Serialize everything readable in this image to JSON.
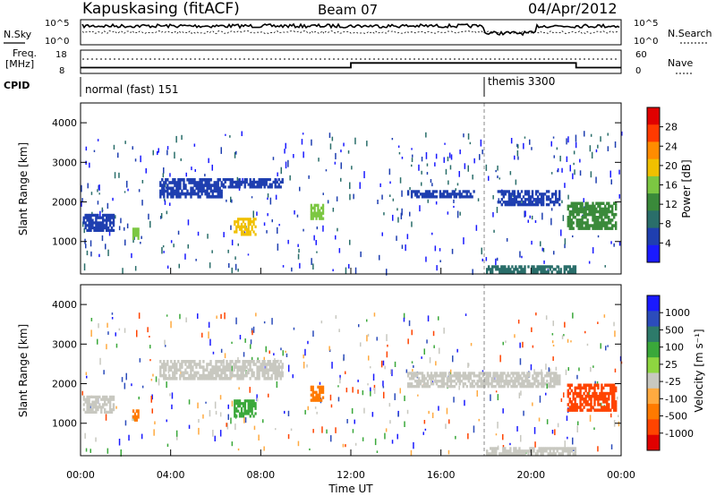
{
  "header": {
    "station": "Kapuskasing (fitACF)",
    "beam": "Beam 07",
    "date": "04/Apr/2012"
  },
  "left_labels": {
    "nsky": "N.Sky",
    "freq": "Freq.",
    "freq_unit": "[MHz]",
    "cpid": "CPID"
  },
  "right_labels": {
    "nsearch": "N.Search",
    "nave": "Nave"
  },
  "cpid_modes": [
    {
      "label": "normal (fast) 151",
      "start_hour": 0
    },
    {
      "label": "themis 3300",
      "start_hour": 18
    }
  ],
  "colors": {
    "power_scale": [
      "#1a1aff",
      "#1f3fb0",
      "#2a6e6a",
      "#3a8a3a",
      "#7cc742",
      "#f0c000",
      "#ff8c00",
      "#ff3a00",
      "#e00000"
    ],
    "velocity_scale": [
      "#1a1aff",
      "#2c4cbb",
      "#2d7a6a",
      "#3aa83a",
      "#8ed640",
      "#c8c8c0",
      "#ffaa40",
      "#ff7a00",
      "#ff4400",
      "#e00000"
    ]
  },
  "chart_data": [
    {
      "type": "line",
      "panel": "noise",
      "left_axis": {
        "label": "N.Sky",
        "ticks": [
          "10^5",
          "10^0"
        ]
      },
      "right_axis": {
        "label": "N.Search",
        "ticks": [
          "10^5",
          "10^0"
        ]
      }
    },
    {
      "type": "line",
      "panel": "frequency_nave",
      "left_axis": {
        "label": "Freq. [MHz]",
        "ticks": [
          "18",
          "8"
        ]
      },
      "right_axis": {
        "label": "Nave",
        "ticks": [
          "60",
          "0"
        ]
      },
      "frequency_steps": [
        {
          "x": 0,
          "y": 10.5
        },
        {
          "x": 12,
          "y": 12.5
        },
        {
          "x": 22,
          "y": 10.5
        }
      ]
    },
    {
      "type": "heatmap",
      "panel": "power",
      "xlabel": "",
      "ylabel": "Slant Range [km]",
      "ylim": [
        180,
        4500
      ],
      "yticks": [
        "1000",
        "2000",
        "3000",
        "4000"
      ],
      "colorbar": {
        "label": "Power [dB]",
        "ticks": [
          "4",
          "8",
          "12",
          "16",
          "20",
          "24",
          "28"
        ]
      },
      "regions": [
        {
          "x0": 0.1,
          "x1": 1.5,
          "y0": 1250,
          "y1": 1700,
          "value": 6
        },
        {
          "x0": 2.3,
          "x1": 2.6,
          "y0": 1050,
          "y1": 1350,
          "value": 16
        },
        {
          "x0": 3.5,
          "x1": 6.3,
          "y0": 2100,
          "y1": 2600,
          "value": 6
        },
        {
          "x0": 6.3,
          "x1": 9.0,
          "y0": 2350,
          "y1": 2600,
          "value": 6
        },
        {
          "x0": 6.8,
          "x1": 7.8,
          "y0": 1150,
          "y1": 1600,
          "value": 18
        },
        {
          "x0": 10.2,
          "x1": 10.8,
          "y0": 1550,
          "y1": 1950,
          "value": 14
        },
        {
          "x0": 14.5,
          "x1": 17.5,
          "y0": 2100,
          "y1": 2300,
          "value": 4
        },
        {
          "x0": 18.5,
          "x1": 21.3,
          "y0": 1900,
          "y1": 2300,
          "value": 6
        },
        {
          "x0": 21.6,
          "x1": 23.8,
          "y0": 1300,
          "y1": 2000,
          "value": 12
        },
        {
          "x0": 18.0,
          "x1": 22.0,
          "y0": 200,
          "y1": 400,
          "value": 10
        }
      ]
    },
    {
      "type": "heatmap",
      "panel": "velocity",
      "xlabel": "Time UT",
      "ylabel": "Slant Range [km]",
      "ylim": [
        180,
        4500
      ],
      "yticks": [
        "1000",
        "2000",
        "3000",
        "4000"
      ],
      "xticks": [
        "00:00",
        "04:00",
        "08:00",
        "12:00",
        "16:00",
        "20:00",
        "00:00"
      ],
      "xlim": [
        0,
        24
      ],
      "colorbar": {
        "label": "Velocity [m s^-1]",
        "ticks": [
          "1000",
          "500",
          "100",
          "25",
          "-25",
          "-100",
          "-500",
          "-1000"
        ]
      },
      "regions": [
        {
          "x0": 0.1,
          "x1": 1.5,
          "y0": 1250,
          "y1": 1700,
          "value": 0
        },
        {
          "x0": 2.3,
          "x1": 2.6,
          "y0": 1050,
          "y1": 1350,
          "value": -300
        },
        {
          "x0": 3.5,
          "x1": 9.0,
          "y0": 2100,
          "y1": 2600,
          "value": 0
        },
        {
          "x0": 6.8,
          "x1": 7.8,
          "y0": 1150,
          "y1": 1600,
          "value": 100
        },
        {
          "x0": 10.2,
          "x1": 10.8,
          "y0": 1550,
          "y1": 1950,
          "value": -300
        },
        {
          "x0": 14.5,
          "x1": 21.3,
          "y0": 1900,
          "y1": 2300,
          "value": 0
        },
        {
          "x0": 21.6,
          "x1": 23.8,
          "y0": 1300,
          "y1": 2000,
          "value": -600
        },
        {
          "x0": 18.0,
          "x1": 22.0,
          "y0": 200,
          "y1": 400,
          "value": 0
        }
      ]
    }
  ]
}
